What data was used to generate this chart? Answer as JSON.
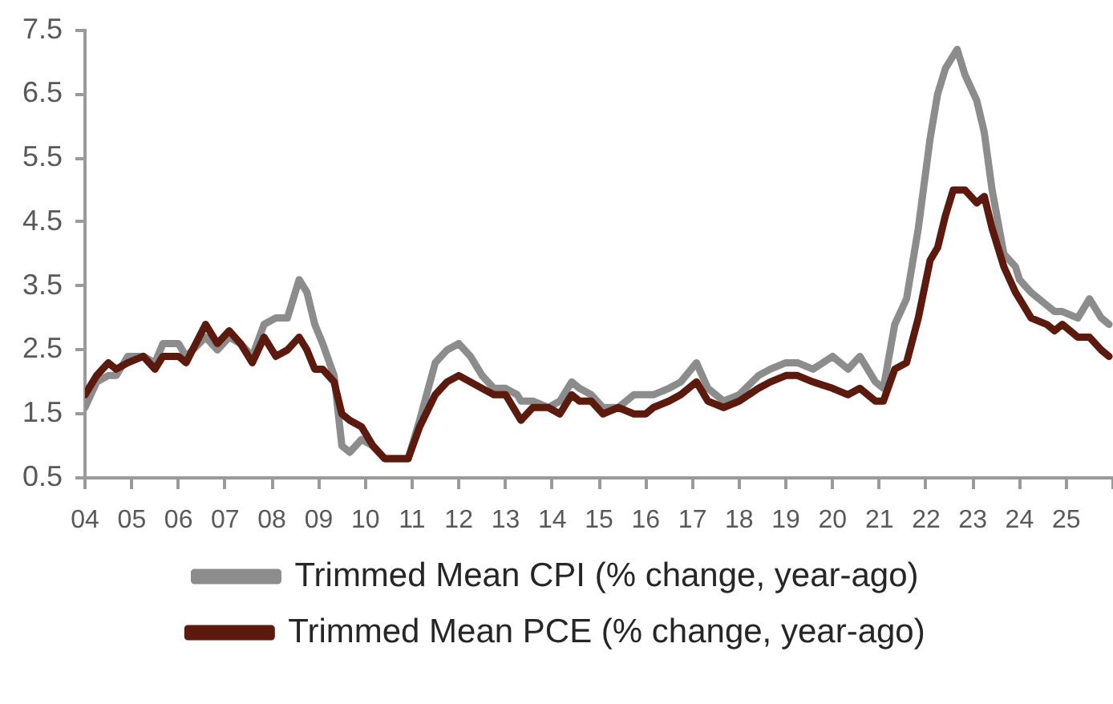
{
  "chart_data": {
    "type": "line",
    "x": [
      "2004-01",
      "2004-04",
      "2004-07",
      "2004-09",
      "2004-12",
      "2005-04",
      "2005-07",
      "2005-09",
      "2006-01",
      "2006-03",
      "2006-08",
      "2006-11",
      "2007-02",
      "2007-05",
      "2007-08",
      "2007-11",
      "2008-02",
      "2008-05",
      "2008-08",
      "2008-10",
      "2008-12",
      "2009-02",
      "2009-05",
      "2009-07",
      "2009-09",
      "2009-12",
      "2010-03",
      "2010-06",
      "2010-09",
      "2010-12",
      "2011-03",
      "2011-07",
      "2011-10",
      "2012-01",
      "2012-04",
      "2012-07",
      "2012-10",
      "2013-01",
      "2013-04",
      "2013-05",
      "2013-08",
      "2013-12",
      "2014-03",
      "2014-06",
      "2014-08",
      "2014-11",
      "2015-02",
      "2015-06",
      "2015-10",
      "2016-01",
      "2016-03",
      "2016-07",
      "2016-10",
      "2017-02",
      "2017-05",
      "2017-09",
      "2018-01",
      "2018-06",
      "2018-09",
      "2019-01",
      "2019-04",
      "2019-08",
      "2020-01",
      "2020-05",
      "2020-08",
      "2020-12",
      "2021-02",
      "2021-05",
      "2021-08",
      "2021-11",
      "2022-02",
      "2022-04",
      "2022-06",
      "2022-08",
      "2022-09",
      "2022-11",
      "2023-02",
      "2023-04",
      "2023-06",
      "2023-09",
      "2023-12",
      "2024-01",
      "2024-04",
      "2024-08",
      "2024-10",
      "2024-12",
      "2025-04",
      "2025-07",
      "2025-10",
      "2025-12"
    ],
    "series": [
      {
        "name": "Trimmed Mean CPI (% change, year-ago)",
        "color": "#8c8c8c",
        "values": [
          1.6,
          2.0,
          2.1,
          2.1,
          2.4,
          2.4,
          2.3,
          2.6,
          2.6,
          2.4,
          2.7,
          2.5,
          2.7,
          2.6,
          2.4,
          2.9,
          3.0,
          3.0,
          3.6,
          3.4,
          2.9,
          2.6,
          2.1,
          1.0,
          0.9,
          1.1,
          1.0,
          0.8,
          0.8,
          0.8,
          1.4,
          2.3,
          2.5,
          2.6,
          2.4,
          2.1,
          1.9,
          1.9,
          1.8,
          1.7,
          1.7,
          1.6,
          1.7,
          2.0,
          1.9,
          1.8,
          1.6,
          1.6,
          1.8,
          1.8,
          1.8,
          1.9,
          2.0,
          2.3,
          1.9,
          1.7,
          1.8,
          2.1,
          2.2,
          2.3,
          2.3,
          2.2,
          2.4,
          2.2,
          2.4,
          2.0,
          1.9,
          2.9,
          3.3,
          4.4,
          5.8,
          6.5,
          6.9,
          7.1,
          7.2,
          6.8,
          6.4,
          5.9,
          5.0,
          4.0,
          3.8,
          3.6,
          3.4,
          3.2,
          3.1,
          3.1,
          3.0,
          3.3,
          3.0,
          2.9
        ]
      },
      {
        "name": "Trimmed Mean PCE (% change, year-ago)",
        "color": "#5c1a0e",
        "values": [
          1.8,
          2.1,
          2.3,
          2.2,
          2.3,
          2.4,
          2.2,
          2.4,
          2.4,
          2.3,
          2.9,
          2.6,
          2.8,
          2.6,
          2.3,
          2.7,
          2.4,
          2.5,
          2.7,
          2.5,
          2.2,
          2.2,
          2.0,
          1.5,
          1.4,
          1.3,
          1.0,
          0.8,
          0.8,
          0.8,
          1.3,
          1.8,
          2.0,
          2.1,
          2.0,
          1.9,
          1.8,
          1.8,
          1.5,
          1.4,
          1.6,
          1.6,
          1.5,
          1.8,
          1.7,
          1.7,
          1.5,
          1.6,
          1.5,
          1.5,
          1.6,
          1.7,
          1.8,
          2.0,
          1.7,
          1.6,
          1.7,
          1.9,
          2.0,
          2.1,
          2.1,
          2.0,
          1.9,
          1.8,
          1.9,
          1.7,
          1.7,
          2.2,
          2.3,
          3.0,
          3.9,
          4.1,
          4.6,
          5.0,
          5.0,
          5.0,
          4.8,
          4.9,
          4.4,
          3.8,
          3.4,
          3.3,
          3.0,
          2.9,
          2.8,
          2.9,
          2.7,
          2.7,
          2.5,
          2.4
        ]
      }
    ],
    "xlim": [
      "2004",
      "2026"
    ],
    "xticks": [
      {
        "value": "2004",
        "label": "04"
      },
      {
        "value": "2005",
        "label": "05"
      },
      {
        "value": "2006",
        "label": "06"
      },
      {
        "value": "2007",
        "label": "07"
      },
      {
        "value": "2008",
        "label": "08"
      },
      {
        "value": "2009",
        "label": "09"
      },
      {
        "value": "2010",
        "label": "10"
      },
      {
        "value": "2011",
        "label": "11"
      },
      {
        "value": "2012",
        "label": "12"
      },
      {
        "value": "2013",
        "label": "13"
      },
      {
        "value": "2014",
        "label": "14"
      },
      {
        "value": "2015",
        "label": "15"
      },
      {
        "value": "2016",
        "label": "16"
      },
      {
        "value": "2017",
        "label": "17"
      },
      {
        "value": "2018",
        "label": "18"
      },
      {
        "value": "2019",
        "label": "19"
      },
      {
        "value": "2020",
        "label": "20"
      },
      {
        "value": "2021",
        "label": "21"
      },
      {
        "value": "2022",
        "label": "22"
      },
      {
        "value": "2023",
        "label": "23"
      },
      {
        "value": "2024",
        "label": "24"
      },
      {
        "value": "2025",
        "label": "25"
      },
      {
        "value": "2026",
        "label": null
      }
    ],
    "ylim": [
      0.5,
      7.5
    ],
    "yticks": [
      0.5,
      1.5,
      2.5,
      3.5,
      4.5,
      5.5,
      6.5,
      7.5
    ],
    "legend": "bottom",
    "marker": "none",
    "line_style": "solid"
  }
}
